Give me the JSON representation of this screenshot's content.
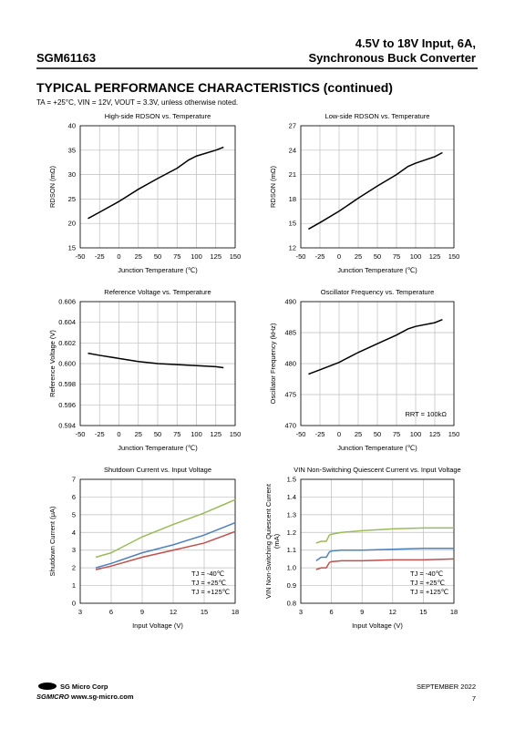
{
  "header": {
    "title_line1": "4.5V to 18V Input, 6A,",
    "title_line2": "Synchronous Buck Converter",
    "part": "SGM61163"
  },
  "section_title": "TYPICAL PERFORMANCE CHARACTERISTICS (continued)",
  "conditions": "TA = +25°C, VIN = 12V, VOUT = 3.3V, unless otherwise noted.",
  "footer": {
    "company": "SG Micro Corp",
    "website": "www.sg-micro.com",
    "logo": "SGMICRO",
    "date": "SEPTEMBER 2022",
    "page": "7"
  },
  "chart_data": [
    {
      "type": "line",
      "title": "High-side RDSON vs. Temperature",
      "xlabel": "Junction Temperature (℃)",
      "ylabel": [
        "RDSON (mΩ)"
      ],
      "x": [
        -40,
        -25,
        0,
        25,
        50,
        75,
        90,
        100,
        125,
        135
      ],
      "series": [
        {
          "color": "#000000",
          "values": [
            21,
            22.3,
            24.5,
            27,
            29.2,
            31.3,
            33,
            33.8,
            35,
            35.6
          ]
        }
      ],
      "xlim": [
        -50,
        150
      ],
      "xticks": [
        -50,
        -25,
        0,
        25,
        50,
        75,
        100,
        125,
        150
      ],
      "ylim": [
        15,
        40
      ],
      "yticks": [
        15,
        20,
        25,
        30,
        35,
        40
      ],
      "grid": true
    },
    {
      "type": "line",
      "title": "Low-side RDSON vs. Temperature",
      "xlabel": "Junction Temperature (℃)",
      "ylabel": [
        "RDSON (mΩ)"
      ],
      "x": [
        -40,
        -25,
        0,
        25,
        50,
        75,
        90,
        100,
        125,
        135
      ],
      "series": [
        {
          "color": "#000000",
          "values": [
            14.3,
            15.1,
            16.5,
            18.1,
            19.6,
            21,
            22,
            22.4,
            23.2,
            23.7
          ]
        }
      ],
      "xlim": [
        -50,
        150
      ],
      "xticks": [
        -50,
        -25,
        0,
        25,
        50,
        75,
        100,
        125,
        150
      ],
      "ylim": [
        12,
        27
      ],
      "yticks": [
        12,
        15,
        18,
        21,
        24,
        27
      ],
      "grid": true
    },
    {
      "type": "line",
      "title": "Reference Voltage vs. Temperature",
      "xlabel": "Junction Temperature (℃)",
      "ylabel": [
        "Reference Voltage (V)"
      ],
      "x": [
        -40,
        -25,
        0,
        25,
        50,
        75,
        100,
        125,
        135
      ],
      "series": [
        {
          "color": "#000000",
          "values": [
            0.601,
            0.6008,
            0.6005,
            0.6002,
            0.6,
            0.5999,
            0.5998,
            0.5997,
            0.5996
          ]
        }
      ],
      "xlim": [
        -50,
        150
      ],
      "xticks": [
        -50,
        -25,
        0,
        25,
        50,
        75,
        100,
        125,
        150
      ],
      "ylim": [
        0.594,
        0.606
      ],
      "yticks": [
        0.594,
        0.596,
        0.598,
        {
          "value": 0.6,
          "label": "0.600"
        },
        0.602,
        0.604,
        0.606
      ],
      "grid": true
    },
    {
      "type": "line",
      "title": "Oscillator Frequency vs. Temperature",
      "xlabel": "Junction Temperature (℃)",
      "ylabel": [
        "Oscillator Frequency (kHz)"
      ],
      "x": [
        -40,
        -25,
        0,
        25,
        50,
        75,
        90,
        100,
        125,
        135
      ],
      "series": [
        {
          "color": "#000000",
          "values": [
            478.3,
            479,
            480.2,
            481.8,
            483.2,
            484.6,
            485.6,
            486,
            486.6,
            487.1
          ]
        }
      ],
      "xlim": [
        -50,
        150
      ],
      "xticks": [
        -50,
        -25,
        0,
        25,
        50,
        75,
        100,
        125,
        150
      ],
      "ylim": [
        470,
        490
      ],
      "yticks": [
        470,
        475,
        480,
        485,
        490
      ],
      "grid": true,
      "annotation": "RRT = 100kΩ"
    },
    {
      "type": "line",
      "title": "Shutdown Current vs. Input Voltage",
      "xlabel": "Input Voltage (V)",
      "ylabel": [
        "Shutdown Current (μA)"
      ],
      "x": [
        4.5,
        6,
        9,
        12,
        15,
        18
      ],
      "series": [
        {
          "name": "TJ = -40℃",
          "color": "#c0504d",
          "values": [
            1.9,
            2.1,
            2.6,
            3.0,
            3.4,
            4.05
          ]
        },
        {
          "name": "TJ = +25℃",
          "color": "#4f81bd",
          "values": [
            2.0,
            2.25,
            2.85,
            3.3,
            3.85,
            4.55
          ]
        },
        {
          "name": "TJ = +125℃",
          "color": "#9bbb59",
          "values": [
            2.6,
            2.85,
            3.75,
            4.45,
            5.1,
            5.85
          ]
        }
      ],
      "xlim": [
        3,
        18
      ],
      "xticks": [
        3,
        6,
        9,
        12,
        15,
        18
      ],
      "ylim": [
        0,
        7
      ],
      "yticks": [
        0,
        1,
        2,
        3,
        4,
        5,
        6,
        7
      ],
      "grid": true,
      "legend": "lower right"
    },
    {
      "type": "line",
      "title": "VIN Non-Switching Quiescent Current vs. Input Voltage",
      "xlabel": "Input Voltage (V)",
      "ylabel": [
        "VIN Non-Switching Quiescent Current",
        "(mA)"
      ],
      "x": [
        4.5,
        5,
        5.5,
        5.8,
        6,
        7,
        9,
        12,
        15,
        18
      ],
      "series": [
        {
          "name": "TJ = -40℃",
          "color": "#c0504d",
          "values": [
            0.99,
            1.0,
            1.0,
            1.03,
            1.035,
            1.04,
            1.04,
            1.045,
            1.045,
            1.05
          ]
        },
        {
          "name": "TJ = +25℃",
          "color": "#4f81bd",
          "values": [
            1.04,
            1.06,
            1.06,
            1.09,
            1.095,
            1.1,
            1.1,
            1.105,
            1.11,
            1.11
          ]
        },
        {
          "name": "TJ = +125℃",
          "color": "#9bbb59",
          "values": [
            1.14,
            1.15,
            1.15,
            1.185,
            1.19,
            1.2,
            1.21,
            1.22,
            1.225,
            1.225
          ]
        }
      ],
      "xlim": [
        3,
        18
      ],
      "xticks": [
        3,
        6,
        9,
        12,
        15,
        18
      ],
      "ylim": [
        0.8,
        1.5
      ],
      "yticks": [
        0.8,
        0.9,
        {
          "value": 1.0,
          "label": "1.0"
        },
        1.1,
        1.2,
        1.3,
        1.4,
        1.5
      ],
      "grid": true,
      "legend": "lower right"
    }
  ]
}
